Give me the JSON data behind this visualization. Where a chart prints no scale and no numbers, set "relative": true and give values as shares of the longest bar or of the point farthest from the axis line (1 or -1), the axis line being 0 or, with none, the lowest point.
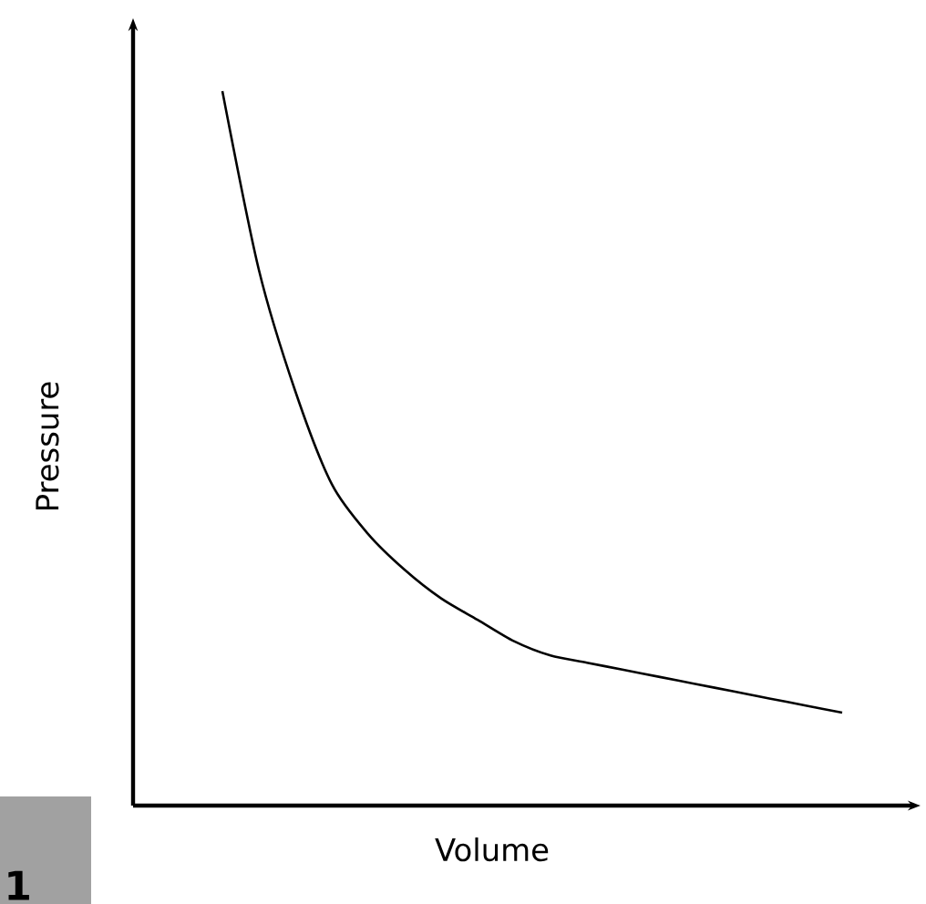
{
  "chart_data": {
    "type": "line",
    "relative": true,
    "xlabel": "Volume",
    "ylabel": "Pressure",
    "color": "#000000",
    "categories": [
      null,
      null,
      null,
      null,
      null,
      null,
      null,
      null,
      null,
      null,
      null,
      null,
      null,
      null,
      null,
      null,
      null,
      null
    ],
    "values": [
      1,
      0.75,
      0.58,
      0.45,
      0.38,
      0.33,
      0.29,
      0.26,
      0.23,
      0.21,
      0.2,
      0.19,
      0.18,
      0.17,
      0.16,
      0.15,
      0.14,
      0.13
    ],
    "annotations": [
      "1"
    ]
  }
}
